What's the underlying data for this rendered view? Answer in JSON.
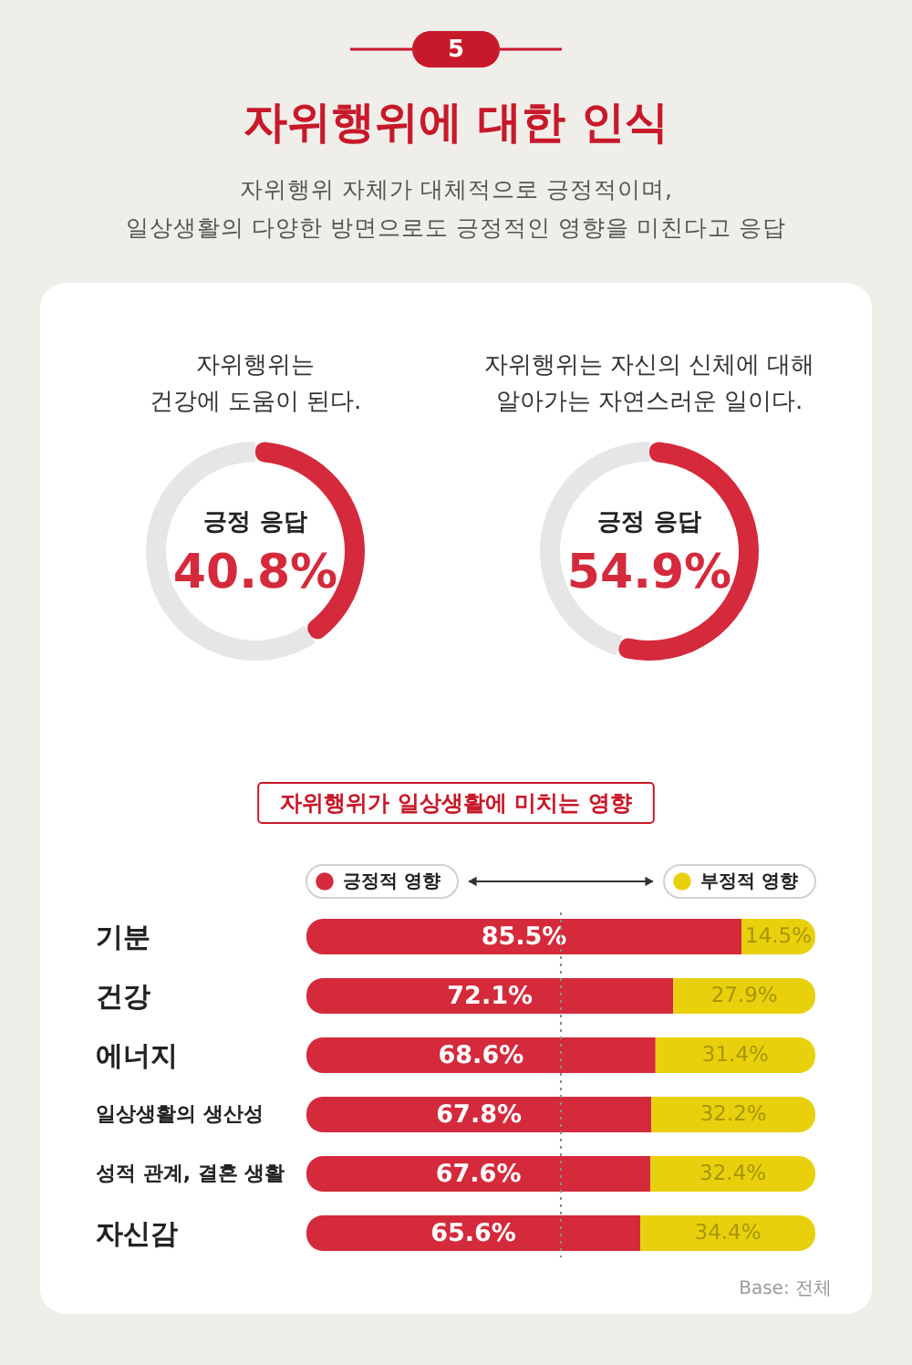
{
  "chart_data": [
    {
      "type": "other",
      "title": "자위행위에 대한 인식",
      "subtitle": "자위행위 자체가 대체적으로 긍정적이며,\n일상생활의 다양한 방면으로도 긍정적인 영향을 미친다고 응답",
      "annotations": [
        "5"
      ]
    },
    {
      "type": "donut",
      "title": "자위행위는\n건강에 도움이 된다.",
      "categories": [
        "긍정 응답",
        null
      ],
      "values": [
        40.8,
        59.2
      ],
      "colors": [
        "#d42a3c",
        "#e6e6e6"
      ],
      "value_labels": [
        "40.8%",
        null
      ]
    },
    {
      "type": "donut",
      "title": "자위행위는 자신의 신체에 대해\n알아가는 자연스러운 일이다.",
      "categories": [
        "긍정 응답",
        null
      ],
      "values": [
        54.9,
        45.1
      ],
      "colors": [
        "#d42a3c",
        "#e6e6e6"
      ],
      "value_labels": [
        "54.9%",
        null
      ]
    },
    {
      "type": "bar",
      "title": "자위행위가 일상생활에 미치는 영향",
      "orientation": "horizontal",
      "stacked": true,
      "categories": [
        "기분",
        "건강",
        "에너지",
        "일상생활의 생산성",
        "성적 관계, 결혼 생활",
        "자신감"
      ],
      "series": [
        {
          "name": "긍정적 영향",
          "color": "#d42a3c",
          "values": [
            85.5,
            72.1,
            68.6,
            67.8,
            67.6,
            65.6
          ],
          "value_labels": [
            "85.5%",
            "72.1%",
            "68.6%",
            "67.8%",
            "67.6%",
            "65.6%"
          ]
        },
        {
          "name": "부정적 영향",
          "color": "#e8d10c",
          "values": [
            14.5,
            27.9,
            31.4,
            32.2,
            32.4,
            34.4
          ],
          "value_labels": [
            "14.5%",
            "27.9%",
            "31.4%",
            "32.2%",
            "32.4%",
            "34.4%"
          ]
        }
      ],
      "xlim": [
        0,
        100
      ],
      "tick_labels": "y",
      "legend": "top",
      "ref_lines": [
        {
          "axis": "x",
          "value": 50,
          "color": "#8a8a8a",
          "line_style": "dotted"
        }
      ],
      "annotations": [
        "Base: 전체"
      ]
    }
  ]
}
